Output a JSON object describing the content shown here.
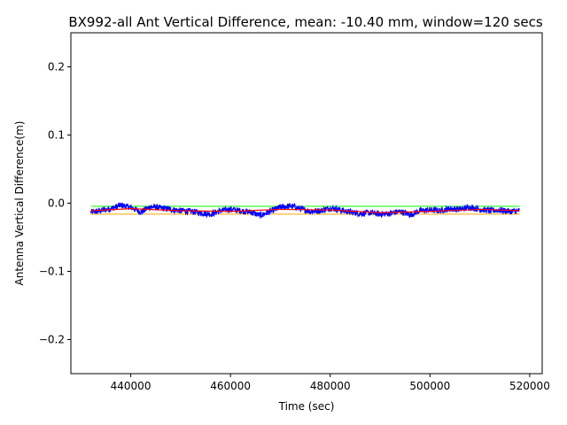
{
  "chart_data": {
    "type": "line",
    "title": "BX992-all Ant Vertical Difference, mean: -10.40 mm, window=120 secs",
    "xlabel": "Time (sec)",
    "ylabel": "Antenna Vertical Difference(m)",
    "xlim": [
      428000,
      522500
    ],
    "ylim": [
      -0.25,
      0.25
    ],
    "xticks": [
      440000,
      460000,
      480000,
      500000,
      520000
    ],
    "xtick_labels": [
      "440000",
      "460000",
      "480000",
      "500000",
      "520000"
    ],
    "yticks": [
      -0.2,
      -0.1,
      0.0,
      0.1,
      0.2
    ],
    "ytick_labels": [
      "−0.2",
      "−0.1",
      "0.0",
      "0.1",
      "0.2"
    ],
    "grid": false,
    "series": [
      {
        "color": "#0000ff",
        "style": "noisy line",
        "x": [
          432000,
          434000,
          436000,
          438000,
          440000,
          442000,
          444000,
          446000,
          448000,
          450000,
          452000,
          454000,
          456000,
          458000,
          460000,
          462000,
          464000,
          466000,
          468000,
          470000,
          472000,
          474000,
          476000,
          478000,
          480000,
          482000,
          484000,
          486000,
          488000,
          490000,
          492000,
          494000,
          496000,
          498000,
          500000,
          502000,
          504000,
          506000,
          508000,
          510000,
          512000,
          514000,
          516000,
          518000
        ],
        "y": [
          -0.013,
          -0.011,
          -0.008,
          -0.003,
          -0.006,
          -0.013,
          -0.005,
          -0.007,
          -0.009,
          -0.011,
          -0.012,
          -0.014,
          -0.016,
          -0.011,
          -0.009,
          -0.011,
          -0.013,
          -0.018,
          -0.012,
          -0.006,
          -0.004,
          -0.008,
          -0.012,
          -0.011,
          -0.007,
          -0.01,
          -0.013,
          -0.015,
          -0.014,
          -0.016,
          -0.015,
          -0.012,
          -0.017,
          -0.011,
          -0.01,
          -0.011,
          -0.008,
          -0.009,
          -0.006,
          -0.009,
          -0.011,
          -0.01,
          -0.012,
          -0.011
        ]
      },
      {
        "color": "#00ff00",
        "style": "thin line",
        "x": [
          432000,
          518000
        ],
        "y": [
          -0.0045,
          -0.0045
        ]
      },
      {
        "color": "#ffa500",
        "style": "thin line",
        "x": [
          432000,
          518000
        ],
        "y": [
          -0.016,
          -0.016
        ]
      },
      {
        "color": "#ff0000",
        "style": "smoothed line",
        "x": [
          432000,
          440000,
          450000,
          460000,
          470000,
          480000,
          490000,
          500000,
          510000,
          518000
        ],
        "y": [
          -0.011,
          -0.008,
          -0.011,
          -0.012,
          -0.009,
          -0.01,
          -0.014,
          -0.012,
          -0.009,
          -0.011
        ]
      }
    ]
  }
}
